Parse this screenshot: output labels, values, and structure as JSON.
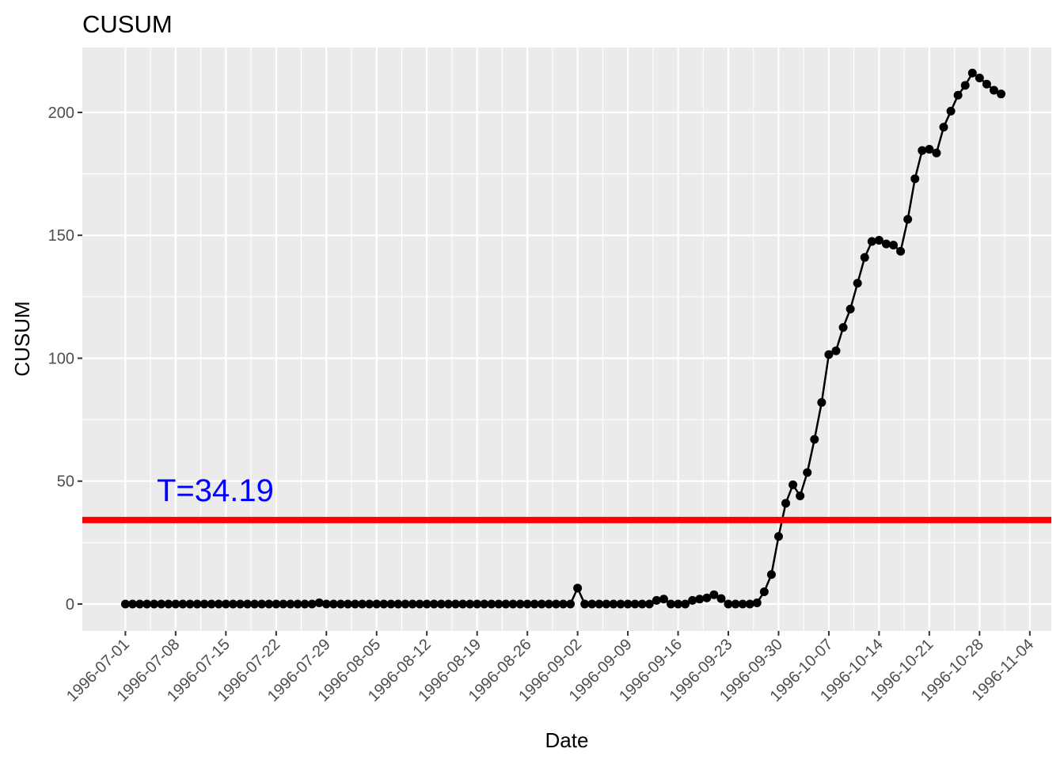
{
  "chart_data": {
    "type": "line",
    "title": "CUSUM",
    "xlabel": "Date",
    "ylabel": "CUSUM",
    "x": [
      "1996-07-01",
      "1996-07-02",
      "1996-07-03",
      "1996-07-04",
      "1996-07-05",
      "1996-07-06",
      "1996-07-07",
      "1996-07-08",
      "1996-07-09",
      "1996-07-10",
      "1996-07-11",
      "1996-07-12",
      "1996-07-13",
      "1996-07-14",
      "1996-07-15",
      "1996-07-16",
      "1996-07-17",
      "1996-07-18",
      "1996-07-19",
      "1996-07-20",
      "1996-07-21",
      "1996-07-22",
      "1996-07-23",
      "1996-07-24",
      "1996-07-25",
      "1996-07-26",
      "1996-07-27",
      "1996-07-28",
      "1996-07-29",
      "1996-07-30",
      "1996-07-31",
      "1996-08-01",
      "1996-08-02",
      "1996-08-03",
      "1996-08-04",
      "1996-08-05",
      "1996-08-06",
      "1996-08-07",
      "1996-08-08",
      "1996-08-09",
      "1996-08-10",
      "1996-08-11",
      "1996-08-12",
      "1996-08-13",
      "1996-08-14",
      "1996-08-15",
      "1996-08-16",
      "1996-08-17",
      "1996-08-18",
      "1996-08-19",
      "1996-08-20",
      "1996-08-21",
      "1996-08-22",
      "1996-08-23",
      "1996-08-24",
      "1996-08-25",
      "1996-08-26",
      "1996-08-27",
      "1996-08-28",
      "1996-08-29",
      "1996-08-30",
      "1996-08-31",
      "1996-09-01",
      "1996-09-02",
      "1996-09-03",
      "1996-09-04",
      "1996-09-05",
      "1996-09-06",
      "1996-09-07",
      "1996-09-08",
      "1996-09-09",
      "1996-09-10",
      "1996-09-11",
      "1996-09-12",
      "1996-09-13",
      "1996-09-14",
      "1996-09-15",
      "1996-09-16",
      "1996-09-17",
      "1996-09-18",
      "1996-09-19",
      "1996-09-20",
      "1996-09-21",
      "1996-09-22",
      "1996-09-23",
      "1996-09-24",
      "1996-09-25",
      "1996-09-26",
      "1996-09-27",
      "1996-09-28",
      "1996-09-29",
      "1996-09-30",
      "1996-10-01",
      "1996-10-02",
      "1996-10-03",
      "1996-10-04",
      "1996-10-05",
      "1996-10-06",
      "1996-10-07",
      "1996-10-08",
      "1996-10-09",
      "1996-10-10",
      "1996-10-11",
      "1996-10-12",
      "1996-10-13",
      "1996-10-14",
      "1996-10-15",
      "1996-10-16",
      "1996-10-17",
      "1996-10-18",
      "1996-10-19",
      "1996-10-20",
      "1996-10-21",
      "1996-10-22",
      "1996-10-23",
      "1996-10-24",
      "1996-10-25",
      "1996-10-26",
      "1996-10-27",
      "1996-10-28",
      "1996-10-29",
      "1996-10-30",
      "1996-10-31"
    ],
    "values": [
      0,
      0,
      0,
      0,
      0,
      0,
      0,
      0,
      0,
      0,
      0,
      0,
      0,
      0,
      0,
      0,
      0,
      0,
      0,
      0,
      0,
      0,
      0,
      0,
      0,
      0,
      0,
      0.5,
      0,
      0,
      0,
      0,
      0,
      0,
      0,
      0,
      0,
      0,
      0,
      0,
      0,
      0,
      0,
      0,
      0,
      0,
      0,
      0,
      0,
      0,
      0,
      0,
      0,
      0,
      0,
      0,
      0,
      0,
      0,
      0,
      0,
      0,
      0,
      6.5,
      0,
      0,
      0,
      0,
      0,
      0,
      0,
      0,
      0,
      0,
      1.5,
      2,
      0,
      0,
      0,
      1.5,
      2,
      2.5,
      3.8,
      2.2,
      0,
      0,
      0,
      0,
      0.5,
      5,
      12,
      27.5,
      41,
      48.5,
      44,
      53.5,
      67,
      82,
      101.5,
      103,
      112.5,
      120,
      130.5,
      141,
      147.5,
      148,
      146.5,
      146,
      143.5,
      156.5,
      173,
      184.5,
      185,
      183.5,
      194,
      200.5,
      207,
      211,
      216,
      214,
      211.5,
      209,
      207.5
    ],
    "color": "#000000",
    "xlim": [
      "1996-06-25",
      "1996-11-07"
    ],
    "xticks": [
      "1996-07-01",
      "1996-07-08",
      "1996-07-15",
      "1996-07-22",
      "1996-07-29",
      "1996-08-05",
      "1996-08-12",
      "1996-08-19",
      "1996-08-26",
      "1996-09-02",
      "1996-09-09",
      "1996-09-16",
      "1996-09-23",
      "1996-09-30",
      "1996-10-07",
      "1996-10-14",
      "1996-10-21",
      "1996-10-28",
      "1996-11-04"
    ],
    "ylim": [
      -10.95,
      226.4
    ],
    "yticks": [
      0,
      50,
      100,
      150,
      200
    ],
    "grid": true,
    "threshold": {
      "value": 34.19,
      "label": "T=34.19",
      "color": "#ff0000",
      "label_color": "#0000ff"
    }
  }
}
